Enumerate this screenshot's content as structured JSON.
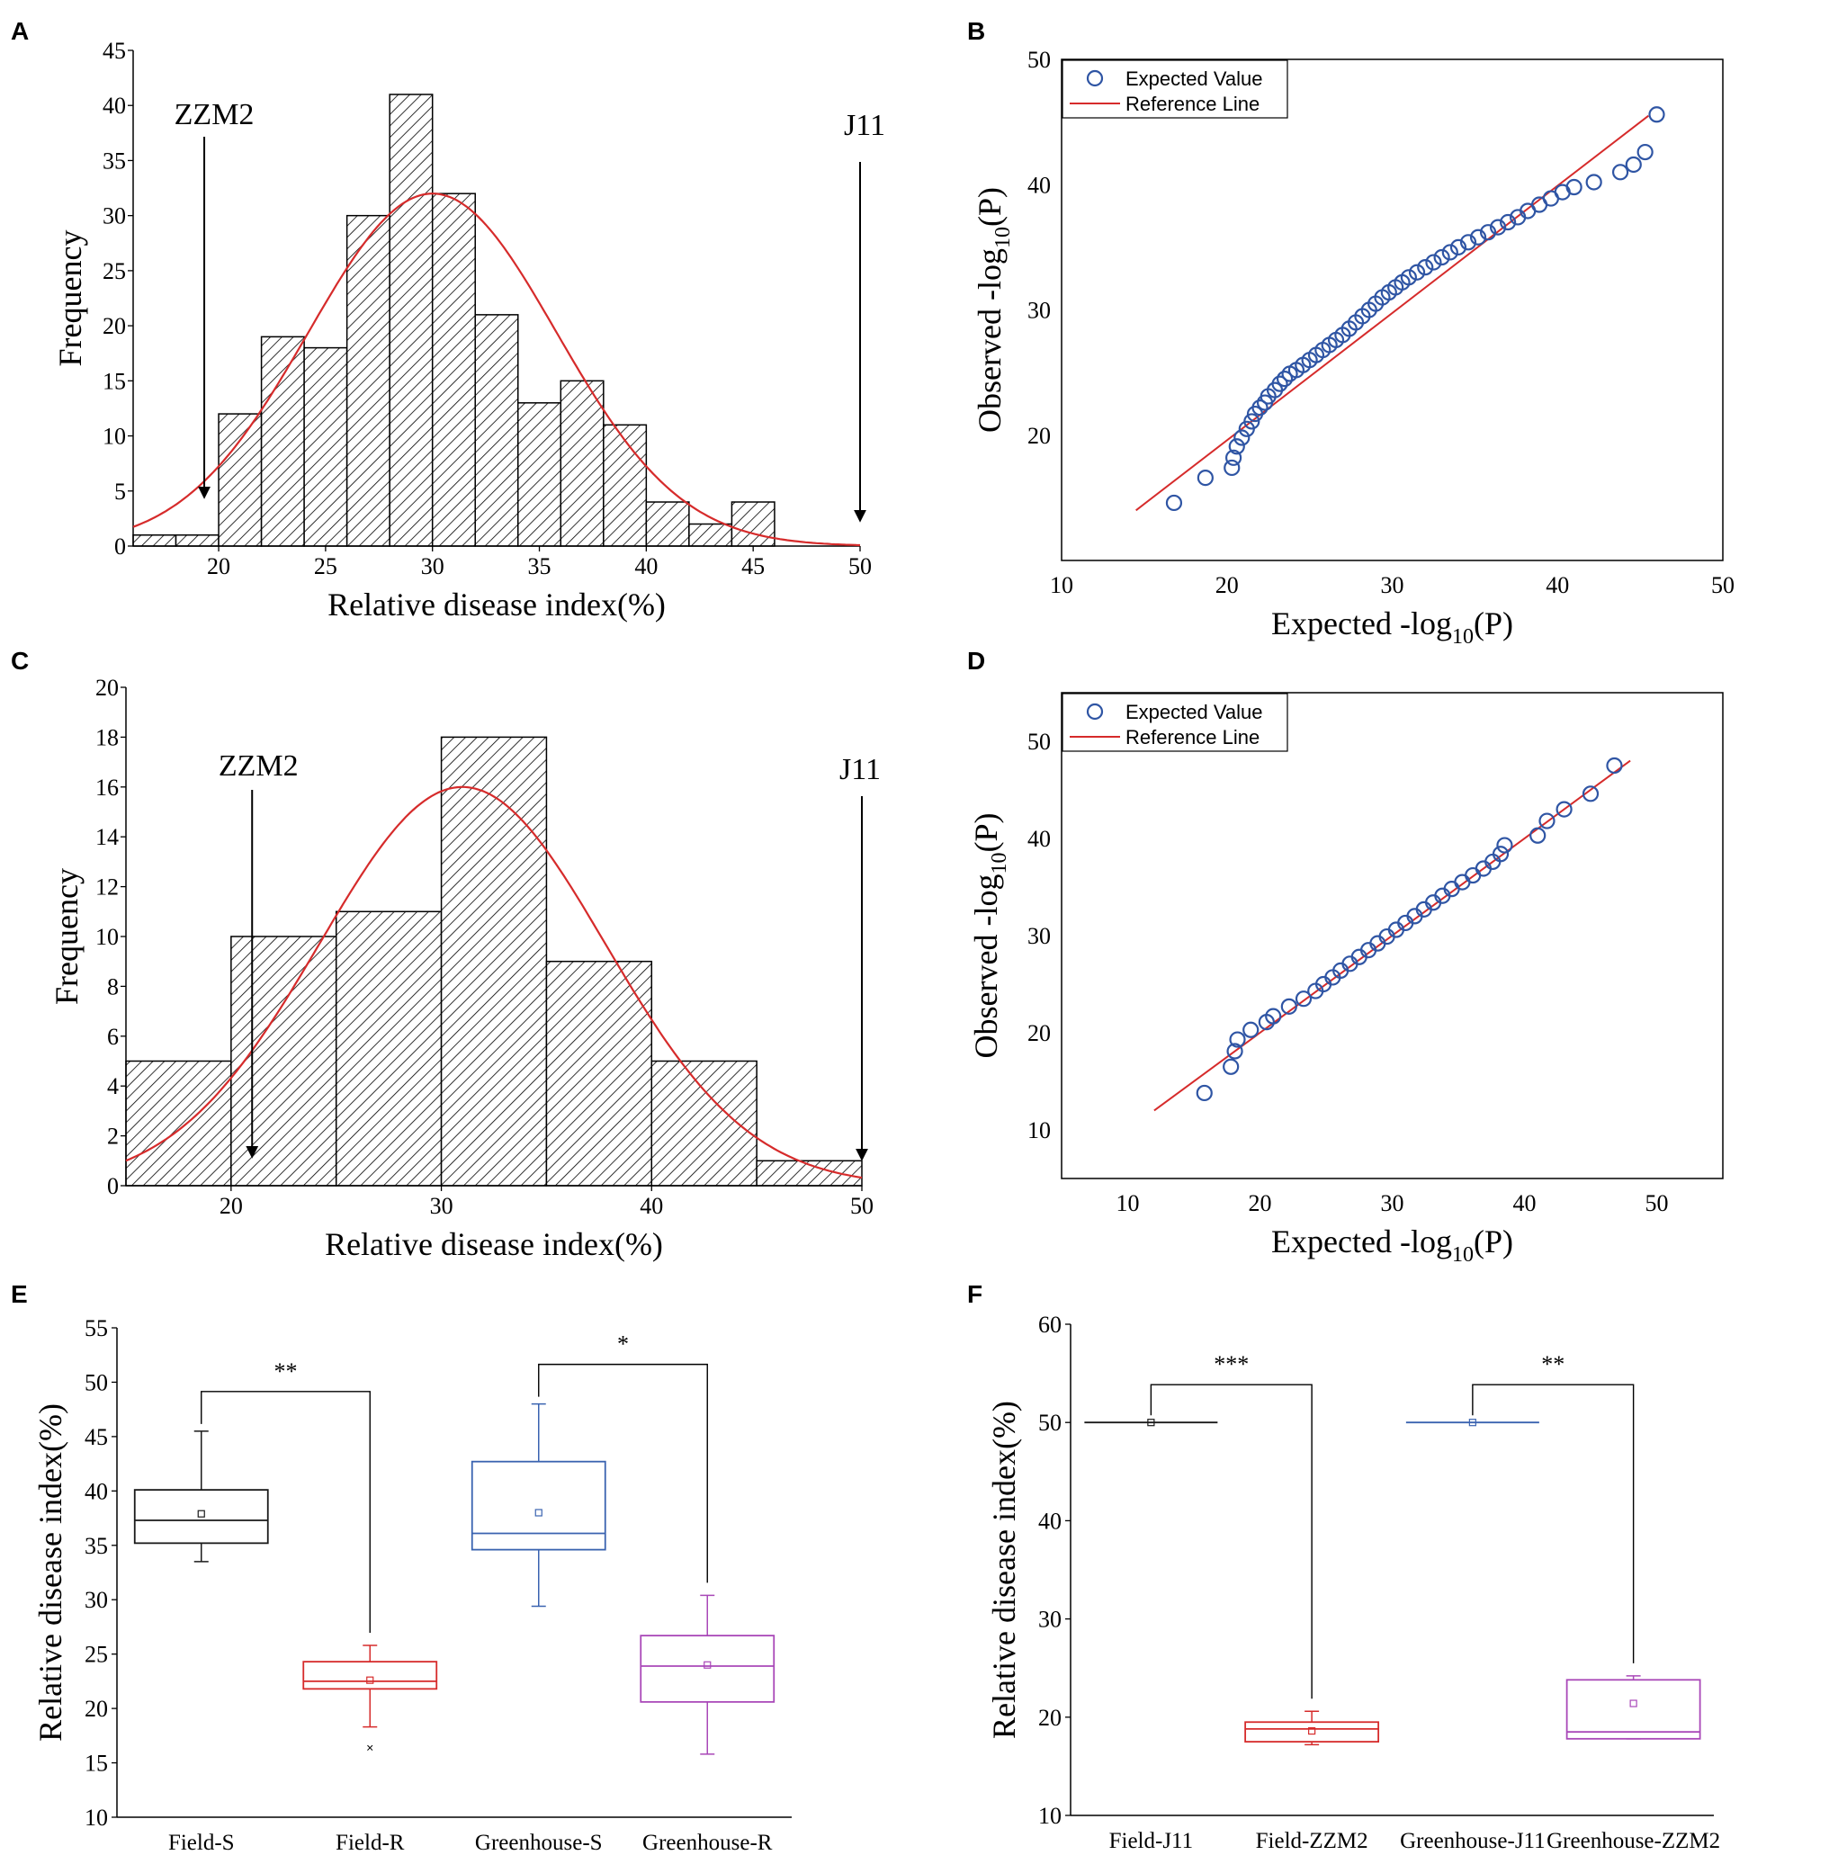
{
  "chart_data": [
    {
      "panel": "A",
      "type": "bar",
      "subtype": "histogram",
      "xlabel": "Relative disease index(%)",
      "ylabel": "Frequency",
      "xlim": [
        16,
        50
      ],
      "ylim": [
        0,
        45
      ],
      "xticks": [
        20,
        25,
        30,
        35,
        40,
        45,
        50
      ],
      "yticks": [
        0,
        5,
        10,
        15,
        20,
        25,
        30,
        35,
        40,
        45
      ],
      "bin_width": 2,
      "bin_starts": [
        16,
        18,
        20,
        22,
        24,
        26,
        28,
        30,
        32,
        34,
        36,
        38,
        40,
        42,
        44
      ],
      "values": [
        1,
        1,
        12,
        19,
        18,
        30,
        41,
        32,
        21,
        13,
        15,
        11,
        4,
        2,
        4
      ],
      "normal_fit": {
        "mean": 30,
        "sd": 5.8,
        "peak": 32
      },
      "annotations": [
        {
          "label": "ZZM2",
          "x": 19.2
        },
        {
          "label": "J11",
          "x": 50.0
        }
      ]
    },
    {
      "panel": "B",
      "type": "scatter",
      "xlabel": "Expected -log",
      "xlabel_sub": "10",
      "xlabel_end": "(P)",
      "ylabel": "Observed -log",
      "ylabel_sub": "10",
      "ylabel_end": "(P)",
      "xlim": [
        10,
        50
      ],
      "ylim": [
        10,
        50
      ],
      "xticks": [
        10,
        20,
        30,
        40,
        50
      ],
      "yticks": [
        20,
        30,
        40,
        50
      ],
      "legend": {
        "position": "top-left",
        "entries": [
          "Expected Value",
          "Reference Line"
        ]
      },
      "reference_line": [
        [
          14.5,
          14
        ],
        [
          45.5,
          45.5
        ]
      ],
      "x": [
        16.8,
        18.7,
        20.3,
        20.4,
        20.6,
        20.9,
        21.2,
        21.5,
        21.7,
        22.0,
        22.3,
        22.5,
        22.9,
        23.2,
        23.5,
        23.8,
        24.2,
        24.6,
        25.0,
        25.4,
        25.8,
        26.2,
        26.6,
        27.0,
        27.4,
        27.8,
        28.2,
        28.6,
        29.0,
        29.4,
        29.8,
        30.2,
        30.6,
        31.0,
        31.5,
        32.0,
        32.5,
        33.0,
        33.5,
        34.0,
        34.6,
        35.2,
        35.8,
        36.4,
        37.0,
        37.6,
        38.2,
        38.9,
        39.6,
        40.3,
        41.0,
        42.2,
        43.8,
        44.6,
        45.3,
        46.0
      ],
      "y": [
        14.6,
        16.6,
        17.4,
        18.2,
        19.1,
        19.8,
        20.5,
        21.1,
        21.7,
        22.2,
        22.6,
        23.1,
        23.6,
        24.1,
        24.5,
        24.9,
        25.2,
        25.6,
        26.0,
        26.4,
        26.8,
        27.2,
        27.6,
        28.0,
        28.5,
        29.0,
        29.5,
        30.0,
        30.5,
        31.0,
        31.4,
        31.8,
        32.2,
        32.6,
        33.0,
        33.4,
        33.8,
        34.2,
        34.6,
        35.0,
        35.4,
        35.8,
        36.2,
        36.6,
        37.0,
        37.4,
        37.9,
        38.4,
        38.9,
        39.4,
        39.8,
        40.2,
        41.0,
        41.6,
        42.6,
        45.6
      ]
    },
    {
      "panel": "C",
      "type": "bar",
      "subtype": "histogram",
      "xlabel": "Relative disease index(%)",
      "ylabel": "Frequency",
      "xlim": [
        15,
        50
      ],
      "ylim": [
        0,
        20
      ],
      "xticks": [
        20,
        30,
        40,
        50
      ],
      "yticks": [
        0,
        2,
        4,
        6,
        8,
        10,
        12,
        14,
        16,
        18,
        20
      ],
      "bin_width": 5,
      "bin_starts": [
        15,
        20,
        25,
        30,
        35,
        40,
        45
      ],
      "values": [
        5,
        10,
        11,
        18,
        9,
        5,
        1
      ],
      "normal_fit": {
        "mean": 31,
        "sd": 6.8,
        "peak": 16
      },
      "annotations": [
        {
          "label": "ZZM2",
          "x": 21
        },
        {
          "label": "J11",
          "x": 50
        }
      ]
    },
    {
      "panel": "D",
      "type": "scatter",
      "xlabel": "Expected -log",
      "xlabel_sub": "10",
      "xlabel_end": "(P)",
      "ylabel": "Observed -log",
      "ylabel_sub": "10",
      "ylabel_end": "(P)",
      "xlim": [
        5,
        55
      ],
      "ylim": [
        5,
        55
      ],
      "xticks": [
        10,
        20,
        30,
        40,
        50
      ],
      "yticks": [
        10,
        20,
        30,
        40,
        50
      ],
      "legend": {
        "position": "top-left",
        "entries": [
          "Expected Value",
          "Reference Line"
        ]
      },
      "reference_line": [
        [
          12,
          12
        ],
        [
          48,
          48
        ]
      ],
      "x": [
        15.8,
        17.8,
        18.1,
        18.3,
        19.3,
        20.5,
        21.0,
        22.2,
        23.3,
        24.2,
        24.8,
        25.5,
        26.1,
        26.8,
        27.5,
        28.2,
        28.9,
        29.6,
        30.3,
        31.0,
        31.7,
        32.4,
        33.1,
        33.8,
        34.5,
        35.3,
        36.1,
        36.9,
        37.6,
        38.2,
        38.5,
        41.0,
        41.7,
        43.0,
        45.0,
        46.8
      ],
      "y": [
        13.8,
        16.5,
        18.1,
        19.3,
        20.3,
        21.1,
        21.7,
        22.7,
        23.5,
        24.3,
        25.0,
        25.7,
        26.4,
        27.1,
        27.8,
        28.5,
        29.2,
        29.9,
        30.6,
        31.3,
        32.0,
        32.7,
        33.4,
        34.1,
        34.8,
        35.5,
        36.2,
        36.9,
        37.6,
        38.4,
        39.3,
        40.3,
        41.8,
        43.0,
        44.6,
        47.5
      ]
    },
    {
      "panel": "E",
      "type": "box",
      "ylabel": "Relative disease index(%)",
      "ylim": [
        10,
        55
      ],
      "yticks": [
        10,
        15,
        20,
        25,
        30,
        35,
        40,
        45,
        50,
        55
      ],
      "categories": [
        "Field-S",
        "Field-R",
        "Greenhouse-S",
        "Greenhouse-R"
      ],
      "colors": [
        "#1a1a1a",
        "#d62b2b",
        "#3a63b0",
        "#a948b8"
      ],
      "boxes": [
        {
          "min": 33.5,
          "q1": 35.2,
          "median": 37.3,
          "q3": 40.1,
          "max": 45.5,
          "mean": 37.9,
          "outliers": []
        },
        {
          "min": 18.3,
          "q1": 21.8,
          "median": 22.5,
          "q3": 24.3,
          "max": 25.8,
          "mean": 22.6,
          "outliers": [
            16.5
          ]
        },
        {
          "min": 29.4,
          "q1": 34.6,
          "median": 36.1,
          "q3": 42.7,
          "max": 48.0,
          "mean": 38.0,
          "outliers": []
        },
        {
          "min": 15.8,
          "q1": 20.6,
          "median": 23.9,
          "q3": 26.7,
          "max": 30.4,
          "mean": 24.0,
          "outliers": []
        }
      ],
      "significance": [
        {
          "from": 0,
          "to": 1,
          "label": "**"
        },
        {
          "from": 2,
          "to": 3,
          "label": "*"
        }
      ]
    },
    {
      "panel": "F",
      "type": "box",
      "ylabel": "Relative disease index(%)",
      "ylim": [
        10,
        60
      ],
      "yticks": [
        10,
        20,
        30,
        40,
        50,
        60
      ],
      "categories": [
        "Field-J11",
        "Field-ZZM2",
        "Greenhouse-J11",
        "Greenhouse-ZZM2"
      ],
      "colors": [
        "#1a1a1a",
        "#d62b2b",
        "#3a63b0",
        "#a948b8"
      ],
      "boxes": [
        {
          "min": 50,
          "q1": 50,
          "median": 50,
          "q3": 50,
          "max": 50,
          "mean": 50,
          "outliers": []
        },
        {
          "min": 17.2,
          "q1": 17.5,
          "median": 18.8,
          "q3": 19.5,
          "max": 20.6,
          "mean": 18.6,
          "outliers": []
        },
        {
          "min": 50,
          "q1": 50,
          "median": 50,
          "q3": 50,
          "max": 50,
          "mean": 50,
          "outliers": []
        },
        {
          "min": 17.8,
          "q1": 17.8,
          "median": 18.5,
          "q3": 23.8,
          "max": 24.2,
          "mean": 21.4,
          "outliers": []
        }
      ],
      "significance": [
        {
          "from": 0,
          "to": 1,
          "label": "***"
        },
        {
          "from": 2,
          "to": 3,
          "label": "**"
        }
      ]
    }
  ]
}
